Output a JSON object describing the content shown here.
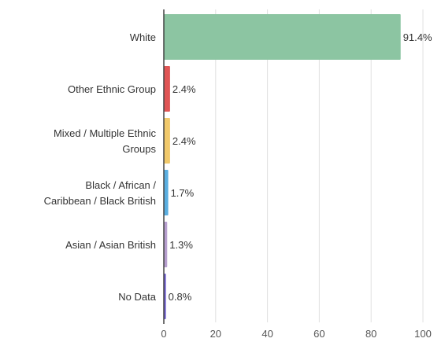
{
  "chart_data": {
    "type": "bar",
    "orientation": "horizontal",
    "categories": [
      [
        "White"
      ],
      [
        "Other Ethnic Group"
      ],
      [
        "Mixed / Multiple Ethnic",
        "Groups"
      ],
      [
        "Black / African /",
        "Caribbean / Black British"
      ],
      [
        "Asian / Asian British"
      ],
      [
        "No Data"
      ]
    ],
    "values": [
      91.4,
      2.4,
      2.4,
      1.7,
      1.3,
      0.8
    ],
    "value_labels": [
      "91.4%",
      "2.4%",
      "2.4%",
      "1.7%",
      "1.3%",
      "0.8%"
    ],
    "colors": [
      "#8cc5a2",
      "#e05555",
      "#f1c96b",
      "#5aaee0",
      "#b79fcf",
      "#6d5bd0"
    ],
    "x_ticks": [
      0,
      20,
      40,
      60,
      80,
      100
    ],
    "xlim": [
      0,
      100
    ],
    "grid": true,
    "title": "",
    "xlabel": "",
    "ylabel": ""
  }
}
